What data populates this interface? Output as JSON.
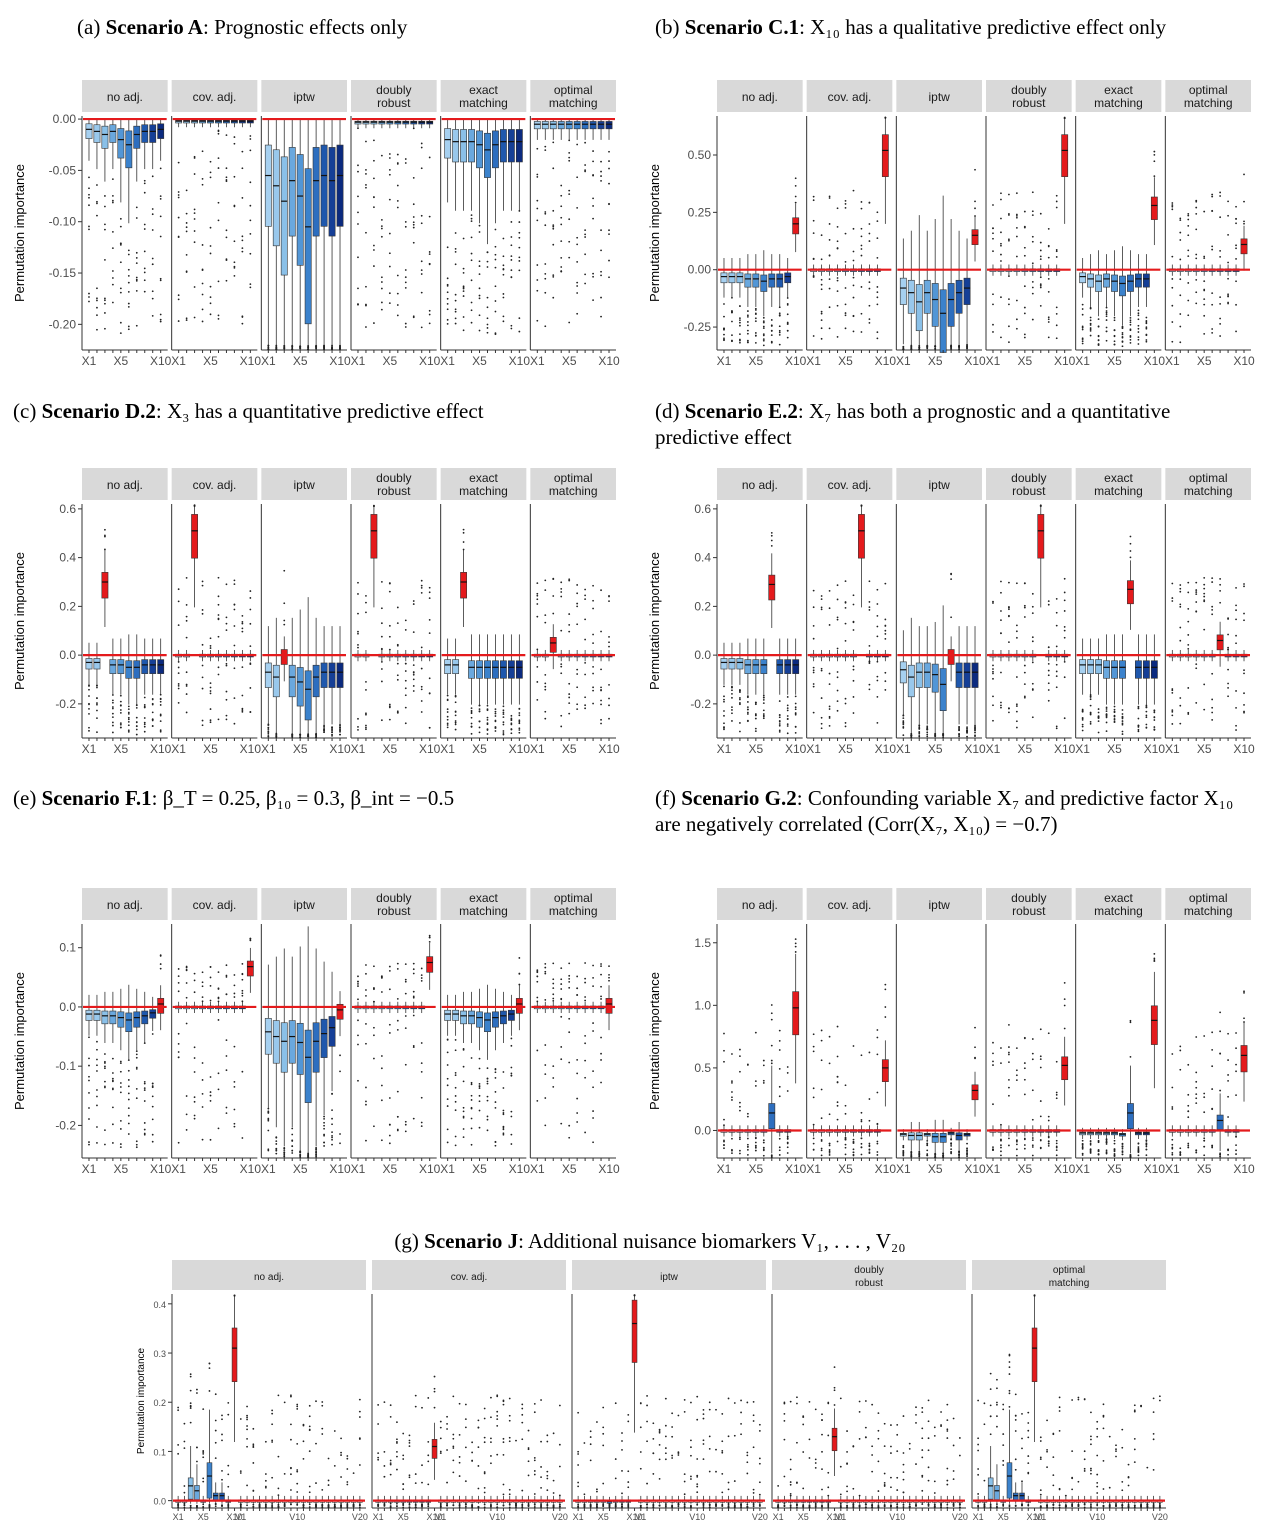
{
  "captions": {
    "a": {
      "tag": "(a)",
      "bold": "Scenario A",
      "rest": ": Prognostic effects only"
    },
    "b": {
      "tag": "(b)",
      "bold": "Scenario C.1",
      "rest": ": X₁₀ has a qualitative predictive effect only"
    },
    "c": {
      "tag": "(c)",
      "bold": "Scenario D.2",
      "rest": ": X₃ has a quantitative predictive effect"
    },
    "d": {
      "tag": "(d)",
      "bold": "Scenario E.2",
      "rest": ": X₇ has both a prognostic and a quantitative predictive effect"
    },
    "e": {
      "tag": "(e)",
      "bold": "Scenario F.1",
      "rest": ": β_T = 0.25, β₁₀ = 0.3, β_int = −0.5"
    },
    "f": {
      "tag": "(f)",
      "bold": "Scenario G.2",
      "rest": ": Confounding variable X₇ and predictive factor X₁₀ are negatively correlated (Corr(X₇, X₁₀) = −0.7)"
    },
    "g": {
      "tag": "(g)",
      "bold": "Scenario J",
      "rest": ": Additional nuisance biomarkers V₁, . . . , V₂₀"
    }
  },
  "colors": {
    "x_shades": [
      "#a6d0f0",
      "#99c8ec",
      "#8ac0e8",
      "#6aa8de",
      "#5296d6",
      "#3b82cc",
      "#2d6ebf",
      "#1f58ad",
      "#153f97",
      "#0b2a7f"
    ],
    "highlight": "#e41a1c",
    "nuisance": "#ffffff",
    "refline": "#e41a1c",
    "strip": "#d9d9d9"
  },
  "chart_data": [
    {
      "id": "a",
      "type": "boxplot",
      "ylabel": "Permutation importance",
      "ylim": [
        -0.225,
        0.003
      ],
      "yticks": [
        0.0,
        -0.05,
        -0.1,
        -0.15,
        -0.2
      ],
      "ytick_labels": [
        "0.00",
        "-0.05",
        "-0.10",
        "-0.15",
        "-0.20"
      ],
      "facets": [
        "no adj.",
        "cov. adj.",
        "iptw",
        "doubly robust",
        "exact matching",
        "optimal matching"
      ],
      "variables": [
        "X1",
        "X2",
        "X3",
        "X4",
        "X5",
        "X6",
        "X7",
        "X8",
        "X9",
        "X10"
      ],
      "xtick_labels": [
        "X1",
        "X5",
        "X10"
      ],
      "highlight_var": null,
      "medians": [
        [
          -0.01,
          -0.012,
          -0.015,
          -0.012,
          -0.02,
          -0.025,
          -0.015,
          -0.012,
          -0.012,
          -0.01
        ],
        [
          -0.002,
          -0.002,
          -0.002,
          -0.002,
          -0.002,
          -0.002,
          -0.002,
          -0.002,
          -0.002,
          -0.002
        ],
        [
          -0.055,
          -0.065,
          -0.08,
          -0.06,
          -0.075,
          -0.105,
          -0.06,
          -0.055,
          -0.06,
          -0.055
        ],
        [
          -0.003,
          -0.003,
          -0.003,
          -0.003,
          -0.003,
          -0.003,
          -0.003,
          -0.003,
          -0.003,
          -0.003
        ],
        [
          -0.02,
          -0.022,
          -0.022,
          -0.022,
          -0.025,
          -0.03,
          -0.025,
          -0.022,
          -0.022,
          -0.022
        ],
        [
          -0.005,
          -0.005,
          -0.005,
          -0.005,
          -0.005,
          -0.005,
          -0.005,
          -0.005,
          -0.005,
          -0.005
        ]
      ]
    },
    {
      "id": "b",
      "type": "boxplot",
      "ylabel": "Permutation importance",
      "ylim": [
        -0.35,
        0.67
      ],
      "yticks": [
        0.5,
        0.25,
        0.0,
        -0.25
      ],
      "ytick_labels": [
        "0.50",
        "0.25",
        "0.00",
        "-0.25"
      ],
      "facets": [
        "no adj.",
        "cov. adj.",
        "iptw",
        "doubly robust",
        "exact matching",
        "optimal matching"
      ],
      "variables": [
        "X1",
        "X2",
        "X3",
        "X4",
        "X5",
        "X6",
        "X7",
        "X8",
        "X9",
        "X10"
      ],
      "xtick_labels": [
        "X1",
        "X5",
        "X10"
      ],
      "highlight_var": 9,
      "medians": [
        [
          -0.03,
          -0.03,
          -0.03,
          -0.04,
          -0.04,
          -0.05,
          -0.04,
          -0.04,
          -0.03,
          0.2
        ],
        [
          0.0,
          0.0,
          0.0,
          0.0,
          0.0,
          0.0,
          0.0,
          0.0,
          0.0,
          0.52
        ],
        [
          -0.08,
          -0.1,
          -0.14,
          -0.1,
          -0.13,
          -0.19,
          -0.13,
          -0.1,
          -0.08,
          0.15
        ],
        [
          0.0,
          0.0,
          0.0,
          0.0,
          0.0,
          0.0,
          0.0,
          0.0,
          0.0,
          0.52
        ],
        [
          -0.03,
          -0.04,
          -0.05,
          -0.04,
          -0.05,
          -0.06,
          -0.05,
          -0.04,
          -0.04,
          0.28
        ],
        [
          0.0,
          0.0,
          0.0,
          0.0,
          0.0,
          0.0,
          0.0,
          0.0,
          0.0,
          0.11
        ]
      ]
    },
    {
      "id": "c",
      "type": "boxplot",
      "ylabel": "Permutation importance",
      "ylim": [
        -0.34,
        0.62
      ],
      "yticks": [
        0.6,
        0.4,
        0.2,
        0.0,
        -0.2
      ],
      "ytick_labels": [
        "0.6",
        "0.4",
        "0.2",
        "0.0",
        "-0.2"
      ],
      "facets": [
        "no adj.",
        "cov. adj.",
        "iptw",
        "doubly robust",
        "exact matching",
        "optimal matching"
      ],
      "variables": [
        "X1",
        "X2",
        "X3",
        "X4",
        "X5",
        "X6",
        "X7",
        "X8",
        "X9",
        "X10"
      ],
      "xtick_labels": [
        "X1",
        "X5",
        "X10"
      ],
      "highlight_var": 2,
      "medians": [
        [
          -0.03,
          -0.03,
          0.3,
          -0.04,
          -0.04,
          -0.05,
          -0.05,
          -0.04,
          -0.04,
          -0.04
        ],
        [
          0.0,
          0.0,
          0.51,
          0.0,
          0.0,
          0.0,
          0.0,
          0.0,
          0.0,
          0.0
        ],
        [
          -0.07,
          -0.09,
          0.0,
          -0.09,
          -0.11,
          -0.14,
          -0.09,
          -0.07,
          -0.07,
          -0.07
        ],
        [
          0.0,
          0.0,
          0.51,
          0.0,
          0.0,
          0.0,
          0.0,
          0.0,
          0.0,
          0.0
        ],
        [
          -0.04,
          -0.04,
          0.3,
          -0.05,
          -0.05,
          -0.05,
          -0.05,
          -0.05,
          -0.05,
          -0.05
        ],
        [
          0.0,
          0.0,
          0.05,
          0.0,
          0.0,
          0.0,
          0.0,
          0.0,
          0.0,
          0.0
        ]
      ]
    },
    {
      "id": "d",
      "type": "boxplot",
      "ylabel": "Permutation importance",
      "ylim": [
        -0.34,
        0.62
      ],
      "yticks": [
        0.6,
        0.4,
        0.2,
        0.0,
        -0.2
      ],
      "ytick_labels": [
        "0.6",
        "0.4",
        "0.2",
        "0.0",
        "-0.2"
      ],
      "facets": [
        "no adj.",
        "cov. adj.",
        "iptw",
        "doubly robust",
        "exact matching",
        "optimal matching"
      ],
      "variables": [
        "X1",
        "X2",
        "X3",
        "X4",
        "X5",
        "X6",
        "X7",
        "X8",
        "X9",
        "X10"
      ],
      "xtick_labels": [
        "X1",
        "X5",
        "X10"
      ],
      "highlight_var": 6,
      "medians": [
        [
          -0.03,
          -0.03,
          -0.03,
          -0.04,
          -0.04,
          -0.04,
          0.29,
          -0.04,
          -0.04,
          -0.04
        ],
        [
          0.0,
          0.0,
          0.0,
          0.0,
          0.0,
          0.0,
          0.51,
          0.0,
          0.0,
          0.0
        ],
        [
          -0.06,
          -0.09,
          -0.07,
          -0.07,
          -0.08,
          -0.12,
          0.0,
          -0.07,
          -0.07,
          -0.07
        ],
        [
          0.0,
          0.0,
          0.0,
          0.0,
          0.0,
          0.0,
          0.51,
          0.0,
          0.0,
          0.0
        ],
        [
          -0.04,
          -0.04,
          -0.04,
          -0.05,
          -0.05,
          -0.05,
          0.27,
          -0.05,
          -0.05,
          -0.05
        ],
        [
          0.0,
          0.0,
          0.0,
          0.0,
          0.0,
          0.0,
          0.06,
          0.0,
          0.0,
          0.0
        ]
      ]
    },
    {
      "id": "e",
      "type": "boxplot",
      "ylabel": "Permutation importance",
      "ylim": [
        -0.255,
        0.14
      ],
      "yticks": [
        0.1,
        0.0,
        -0.1,
        -0.2
      ],
      "ytick_labels": [
        "0.1",
        "0.0",
        "-0.1",
        "-0.2"
      ],
      "facets": [
        "no adj.",
        "cov. adj.",
        "iptw",
        "doubly robust",
        "exact matching",
        "optimal matching"
      ],
      "variables": [
        "X1",
        "X2",
        "X3",
        "X4",
        "X5",
        "X6",
        "X7",
        "X8",
        "X9",
        "X10"
      ],
      "xtick_labels": [
        "X1",
        "X5",
        "X10"
      ],
      "highlight_var": 9,
      "medians": [
        [
          -0.012,
          -0.012,
          -0.015,
          -0.015,
          -0.018,
          -0.022,
          -0.018,
          -0.015,
          -0.01,
          0.005
        ],
        [
          0.0,
          0.0,
          0.0,
          0.0,
          0.0,
          0.0,
          0.0,
          0.0,
          0.0,
          0.068
        ],
        [
          -0.042,
          -0.05,
          -0.058,
          -0.05,
          -0.06,
          -0.085,
          -0.058,
          -0.045,
          -0.035,
          -0.005
        ],
        [
          0.0,
          0.0,
          0.0,
          0.0,
          0.0,
          0.0,
          0.0,
          0.0,
          0.0,
          0.075
        ],
        [
          -0.012,
          -0.012,
          -0.015,
          -0.015,
          -0.018,
          -0.022,
          -0.018,
          -0.015,
          -0.012,
          0.005
        ],
        [
          0.0,
          0.0,
          0.0,
          0.0,
          0.0,
          0.0,
          0.0,
          0.0,
          0.0,
          0.005
        ]
      ]
    },
    {
      "id": "f",
      "type": "boxplot",
      "ylabel": "Permutation importance",
      "ylim": [
        -0.22,
        1.65
      ],
      "yticks": [
        1.5,
        1.0,
        0.5,
        0.0
      ],
      "ytick_labels": [
        "1.5",
        "1.0",
        "0.5",
        "0.0"
      ],
      "facets": [
        "no adj.",
        "cov. adj.",
        "iptw",
        "doubly robust",
        "exact matching",
        "optimal matching"
      ],
      "variables": [
        "X1",
        "X2",
        "X3",
        "X4",
        "X5",
        "X6",
        "X7",
        "X8",
        "X9",
        "X10"
      ],
      "xtick_labels": [
        "X1",
        "X5",
        "X10"
      ],
      "highlight_var": 9,
      "medians": [
        [
          0.0,
          0.0,
          0.0,
          0.0,
          0.0,
          0.0,
          0.14,
          0.0,
          0.0,
          0.98
        ],
        [
          0.0,
          0.0,
          0.0,
          0.0,
          0.0,
          0.0,
          0.0,
          0.0,
          0.0,
          0.5
        ],
        [
          -0.03,
          -0.04,
          -0.04,
          -0.03,
          -0.05,
          -0.05,
          -0.02,
          -0.04,
          -0.03,
          0.32
        ],
        [
          0.0,
          0.0,
          0.0,
          0.0,
          0.0,
          0.0,
          0.0,
          0.0,
          0.0,
          0.52
        ],
        [
          -0.02,
          -0.02,
          -0.02,
          -0.02,
          -0.02,
          -0.03,
          0.14,
          -0.02,
          -0.02,
          0.88
        ],
        [
          0.0,
          0.0,
          0.0,
          0.0,
          0.0,
          0.0,
          0.08,
          0.0,
          0.0,
          0.6
        ]
      ]
    },
    {
      "id": "g",
      "type": "boxplot",
      "ylabel": "Permutation importance",
      "ylim": [
        -0.015,
        0.42
      ],
      "yticks": [
        0.4,
        0.3,
        0.2,
        0.1,
        0.0
      ],
      "ytick_labels": [
        "0.4",
        "0.3",
        "0.2",
        "0.1",
        "0.0"
      ],
      "facets": [
        "no adj.",
        "cov. adj.",
        "iptw",
        "doubly robust",
        "optimal matching"
      ],
      "variables": [
        "X1",
        "X2",
        "X3",
        "X4",
        "X5",
        "X6",
        "X7",
        "X8",
        "X9",
        "X10",
        "V1",
        "V2",
        "V3",
        "V4",
        "V5",
        "V6",
        "V7",
        "V8",
        "V9",
        "V10",
        "V11",
        "V12",
        "V13",
        "V14",
        "V15",
        "V16",
        "V17",
        "V18",
        "V19",
        "V20"
      ],
      "xtick_labels": [
        "X1",
        "X5",
        "X10",
        "V1",
        "V10",
        "V20"
      ],
      "highlight_var": 9,
      "medians": [
        [
          0.0,
          0.0,
          0.03,
          0.02,
          0.0,
          0.05,
          0.01,
          0.01,
          0.0,
          0.31,
          0,
          0,
          0,
          0,
          0,
          0,
          0,
          0,
          0,
          0,
          0,
          0,
          0,
          0,
          0,
          0,
          0,
          0,
          0,
          0
        ],
        [
          0.0,
          0.0,
          0.0,
          0.0,
          0.0,
          0.0,
          0.0,
          0.0,
          0.0,
          0.11,
          0,
          0,
          0,
          0,
          0,
          0,
          0,
          0,
          0,
          0,
          0,
          0,
          0,
          0,
          0,
          0,
          0,
          0,
          0,
          0
        ],
        [
          0.0,
          0.0,
          0.0,
          0.0,
          0.0,
          -0.002,
          0.0,
          0.0,
          0.0,
          0.36,
          0,
          0,
          0,
          0,
          0,
          0,
          0,
          0,
          0,
          0,
          0,
          0,
          0,
          0,
          0,
          0,
          0,
          0,
          0,
          0
        ],
        [
          0.0,
          0.0,
          0.0,
          0.0,
          0.0,
          0.0,
          0.0,
          0.0,
          0.0,
          0.13,
          0,
          0,
          0,
          0,
          0,
          0,
          0,
          0,
          0,
          0,
          0,
          0,
          0,
          0,
          0,
          0,
          0,
          0,
          0,
          0
        ],
        [
          0.0,
          0.0,
          0.03,
          0.02,
          0.0,
          0.05,
          0.01,
          0.01,
          0.0,
          0.31,
          0,
          0,
          0,
          0,
          0,
          0,
          0,
          0,
          0,
          0,
          0,
          0,
          0,
          0,
          0,
          0,
          0,
          0,
          0,
          0
        ]
      ]
    }
  ]
}
